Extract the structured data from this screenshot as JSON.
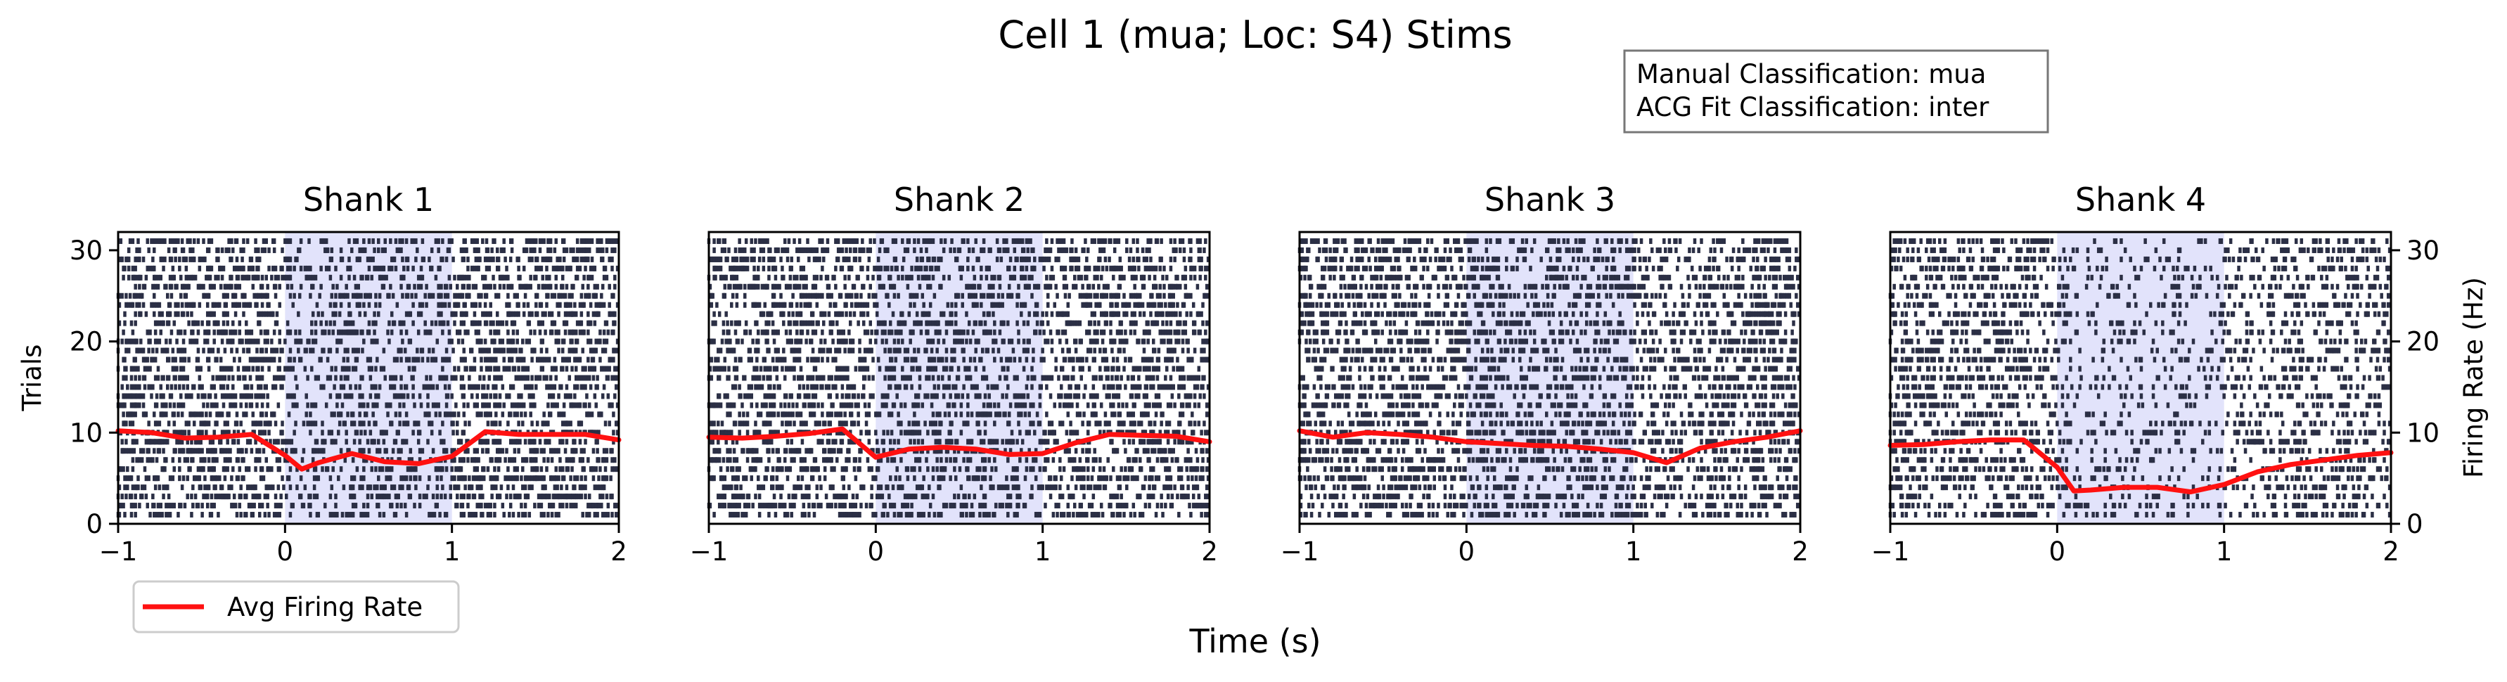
{
  "figure": {
    "title": "Cell 1 (mua; Loc: S4) Stims",
    "info_lines": [
      "Manual Classification: mua",
      "ACG Fit Classification: inter"
    ],
    "xlabel": "Time (s)",
    "ylabel_left": "Trials",
    "ylabel_right": "Firing Rate (Hz)"
  },
  "legend": {
    "label": "Avg Firing Rate",
    "color": "#ff0000",
    "position": "below-left"
  },
  "colors": {
    "spike": "#2b2f45",
    "stim_shade": "#e2e3fb",
    "rate_line": "#ff1111"
  },
  "chart_data": [
    {
      "type": "raster",
      "title": "Shank 1",
      "xlim": [
        -1,
        2
      ],
      "ylim_trials": [
        0,
        32
      ],
      "ylim_rate": [
        0,
        32
      ],
      "xticks": [
        -1,
        0,
        1,
        2
      ],
      "xtick_labels": [
        "−1",
        "0",
        "1",
        "2"
      ],
      "yticks": [
        0,
        10,
        20,
        30
      ],
      "ytick_labels": [
        "0",
        "10",
        "20",
        "30"
      ],
      "stim_window": [
        0,
        1
      ],
      "trials": 31,
      "series": [
        {
          "name": "Avg Firing Rate",
          "x": [
            -1.0,
            -0.8,
            -0.6,
            -0.4,
            -0.2,
            0.0,
            0.1,
            0.2,
            0.4,
            0.6,
            0.8,
            1.0,
            1.2,
            1.4,
            1.6,
            1.8,
            2.0
          ],
          "values": [
            10.2,
            10.0,
            9.4,
            9.5,
            9.8,
            7.5,
            6.0,
            6.7,
            7.7,
            6.8,
            6.6,
            7.4,
            10.1,
            9.8,
            9.8,
            9.8,
            9.2
          ]
        }
      ]
    },
    {
      "type": "raster",
      "title": "Shank 2",
      "xlim": [
        -1,
        2
      ],
      "ylim_trials": [
        0,
        32
      ],
      "ylim_rate": [
        0,
        32
      ],
      "xticks": [
        -1,
        0,
        1,
        2
      ],
      "xtick_labels": [
        "−1",
        "0",
        "1",
        "2"
      ],
      "stim_window": [
        0,
        1
      ],
      "trials": 31,
      "series": [
        {
          "name": "Avg Firing Rate",
          "x": [
            -1.0,
            -0.8,
            -0.6,
            -0.4,
            -0.2,
            0.0,
            0.2,
            0.4,
            0.6,
            0.8,
            1.0,
            1.2,
            1.4,
            1.6,
            1.8,
            2.0
          ],
          "values": [
            9.5,
            9.4,
            9.6,
            9.9,
            10.4,
            7.3,
            8.2,
            8.4,
            8.2,
            7.6,
            7.7,
            8.9,
            9.8,
            9.7,
            9.6,
            9.0
          ]
        }
      ]
    },
    {
      "type": "raster",
      "title": "Shank 3",
      "xlim": [
        -1,
        2
      ],
      "ylim_trials": [
        0,
        32
      ],
      "ylim_rate": [
        0,
        32
      ],
      "xticks": [
        -1,
        0,
        1,
        2
      ],
      "xtick_labels": [
        "−1",
        "0",
        "1",
        "2"
      ],
      "stim_window": [
        0,
        1
      ],
      "trials": 31,
      "series": [
        {
          "name": "Avg Firing Rate",
          "x": [
            -1.0,
            -0.8,
            -0.6,
            -0.4,
            -0.2,
            0.0,
            0.2,
            0.4,
            0.6,
            0.8,
            1.0,
            1.2,
            1.4,
            1.6,
            1.8,
            2.0
          ],
          "values": [
            10.2,
            9.5,
            10.0,
            9.8,
            9.5,
            9.0,
            8.8,
            8.6,
            8.5,
            8.2,
            7.8,
            6.7,
            8.3,
            9.0,
            9.5,
            10.2
          ]
        }
      ]
    },
    {
      "type": "raster",
      "title": "Shank 4",
      "xlim": [
        -1,
        2
      ],
      "ylim_trials": [
        0,
        32
      ],
      "ylim_rate": [
        0,
        32
      ],
      "xticks": [
        -1,
        0,
        1,
        2
      ],
      "xtick_labels": [
        "−1",
        "0",
        "1",
        "2"
      ],
      "yticks_right": [
        0,
        10,
        20,
        30
      ],
      "ytick_labels_right": [
        "0",
        "10",
        "20",
        "30"
      ],
      "stim_window": [
        0,
        1
      ],
      "trials": 31,
      "series": [
        {
          "name": "Avg Firing Rate",
          "x": [
            -1.0,
            -0.8,
            -0.6,
            -0.4,
            -0.2,
            0.0,
            0.1,
            0.2,
            0.4,
            0.6,
            0.8,
            1.0,
            1.2,
            1.4,
            1.6,
            1.8,
            2.0
          ],
          "values": [
            8.6,
            8.7,
            9.0,
            9.2,
            9.2,
            6.2,
            3.6,
            3.7,
            4.0,
            4.0,
            3.5,
            4.3,
            5.7,
            6.5,
            7.0,
            7.5,
            7.8
          ]
        }
      ]
    }
  ]
}
